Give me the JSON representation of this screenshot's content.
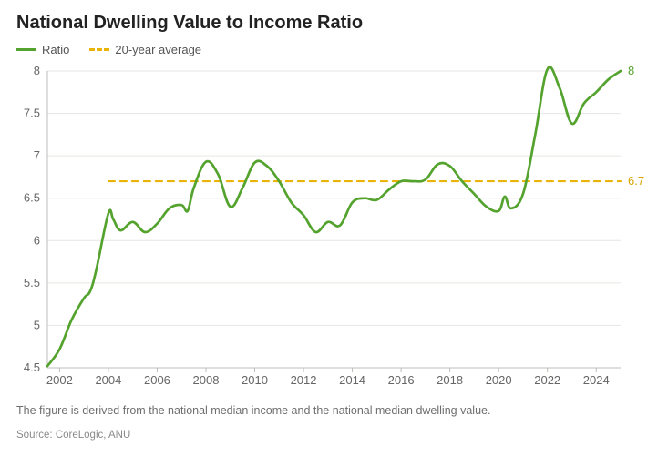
{
  "title": "National Dwelling Value to Income Ratio",
  "legend": {
    "ratio_label": "Ratio",
    "avg_label": "20-year average"
  },
  "footnote": "The figure is derived from the national median income and the national median dwelling value.",
  "source": "Source: CoreLogic, ANU",
  "chart": {
    "type": "line",
    "x_start": 2001.5,
    "x_end": 2025,
    "ylim": [
      4.5,
      8
    ],
    "ytick_step": 0.5,
    "xticks": [
      2002,
      2004,
      2006,
      2008,
      2010,
      2012,
      2014,
      2016,
      2018,
      2020,
      2022,
      2024
    ],
    "grid_color": "#e7e6e2",
    "axis_color": "#bdbdb8",
    "background_color": "#ffffff",
    "ratio_color": "#55a32f",
    "ratio_width": 2.7,
    "avg_color": "#eab308",
    "avg_width": 2.2,
    "avg_value": 6.7,
    "avg_x_start": 2004,
    "avg_x_end": 2025,
    "end_value_label": "8",
    "avg_value_label": "6.7",
    "series": [
      [
        2001.5,
        4.52
      ],
      [
        2002.0,
        4.72
      ],
      [
        2002.5,
        5.07
      ],
      [
        2003.0,
        5.32
      ],
      [
        2003.25,
        5.4
      ],
      [
        2003.5,
        5.65
      ],
      [
        2004.0,
        6.32
      ],
      [
        2004.2,
        6.25
      ],
      [
        2004.5,
        6.12
      ],
      [
        2005.0,
        6.22
      ],
      [
        2005.5,
        6.1
      ],
      [
        2006.0,
        6.2
      ],
      [
        2006.5,
        6.38
      ],
      [
        2007.0,
        6.42
      ],
      [
        2007.25,
        6.35
      ],
      [
        2007.5,
        6.62
      ],
      [
        2008.0,
        6.93
      ],
      [
        2008.5,
        6.78
      ],
      [
        2009.0,
        6.4
      ],
      [
        2009.5,
        6.62
      ],
      [
        2010.0,
        6.92
      ],
      [
        2010.5,
        6.88
      ],
      [
        2011.0,
        6.7
      ],
      [
        2011.5,
        6.45
      ],
      [
        2012.0,
        6.3
      ],
      [
        2012.5,
        6.1
      ],
      [
        2013.0,
        6.22
      ],
      [
        2013.5,
        6.18
      ],
      [
        2014.0,
        6.45
      ],
      [
        2014.5,
        6.5
      ],
      [
        2015.0,
        6.48
      ],
      [
        2015.5,
        6.6
      ],
      [
        2016.0,
        6.7
      ],
      [
        2016.5,
        6.7
      ],
      [
        2017.0,
        6.72
      ],
      [
        2017.5,
        6.9
      ],
      [
        2018.0,
        6.88
      ],
      [
        2018.5,
        6.7
      ],
      [
        2019.0,
        6.55
      ],
      [
        2019.5,
        6.4
      ],
      [
        2020.0,
        6.35
      ],
      [
        2020.25,
        6.52
      ],
      [
        2020.5,
        6.38
      ],
      [
        2021.0,
        6.55
      ],
      [
        2021.5,
        7.25
      ],
      [
        2022.0,
        8.02
      ],
      [
        2022.5,
        7.8
      ],
      [
        2023.0,
        7.38
      ],
      [
        2023.5,
        7.62
      ],
      [
        2024.0,
        7.75
      ],
      [
        2024.5,
        7.9
      ],
      [
        2025.0,
        8.0
      ]
    ]
  }
}
